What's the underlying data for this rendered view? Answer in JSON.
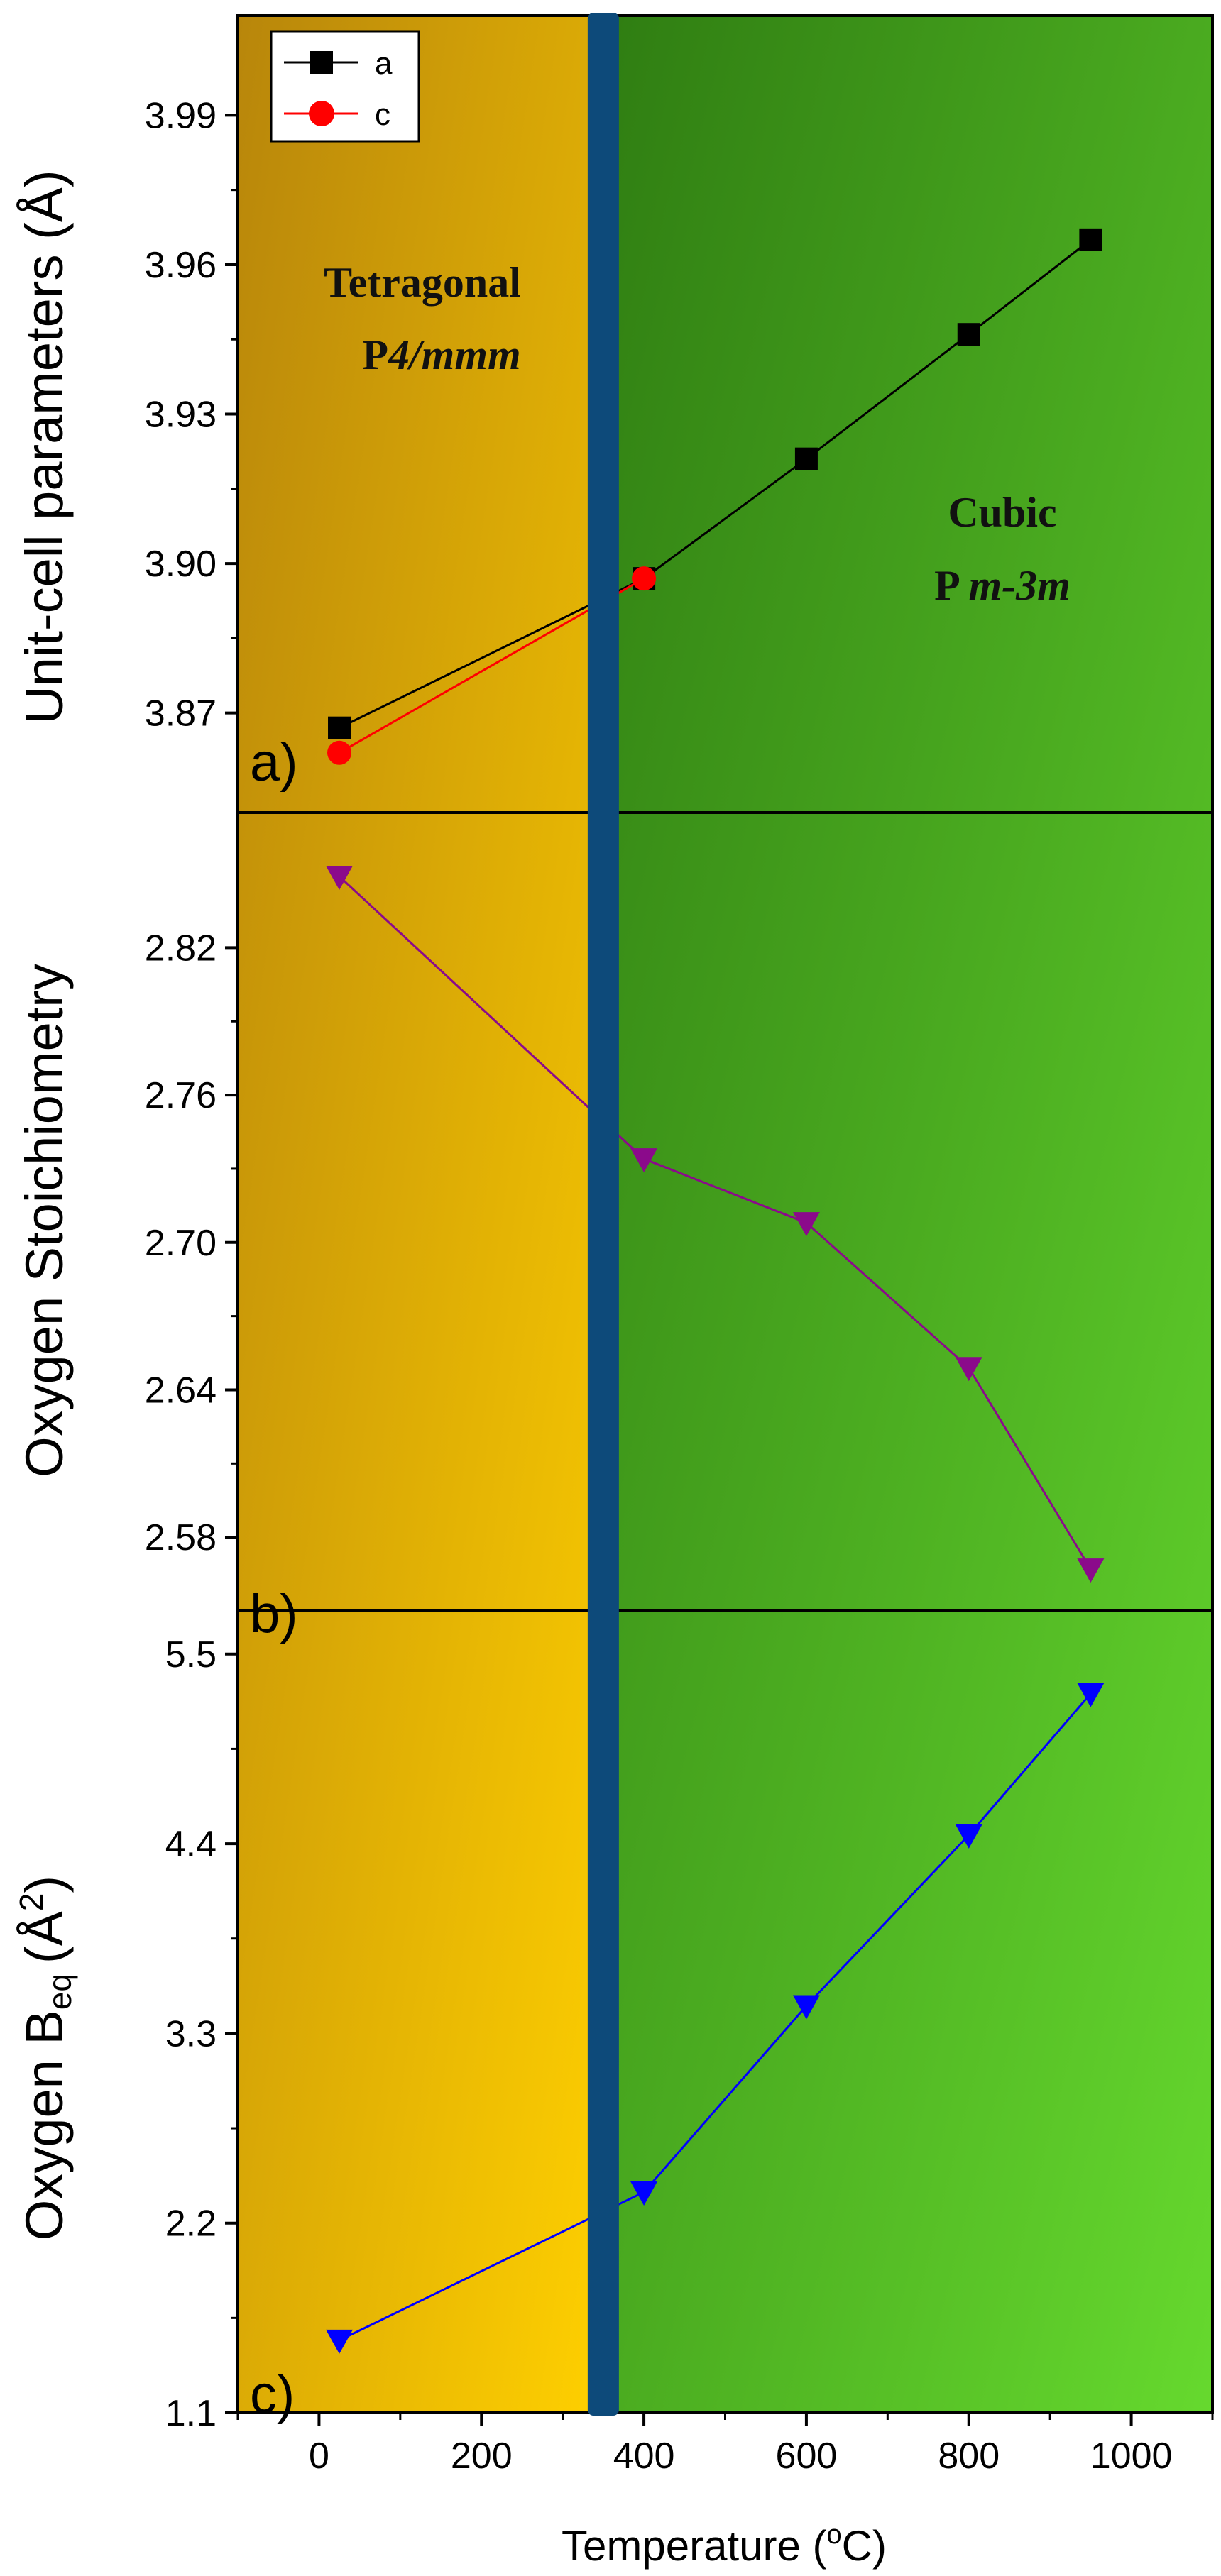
{
  "colors": {
    "tetragonal_dark": "#b8860b",
    "tetragonal_light": "#ffd000",
    "cubic_dark": "#2f7d12",
    "cubic_light": "#66d92e",
    "boundary": "#0d4a7a",
    "series_a": "#000000",
    "series_c": "#ff0000",
    "series_ox": "#8b0a8b",
    "series_beq": "#0000ff"
  },
  "chart_data": [
    {
      "panel_label": "a)",
      "type": "line",
      "ylabel": "Unit-cell parameters (Å)",
      "ylim": [
        3.85,
        4.01
      ],
      "yticks": [
        "3.87",
        "3.90",
        "3.93",
        "3.96",
        "3.99"
      ],
      "legend": {
        "position": "top-left",
        "entries": [
          "a",
          "c"
        ]
      },
      "series": [
        {
          "name": "a",
          "marker": "square",
          "x": [
            25,
            400,
            600,
            800,
            950
          ],
          "y": [
            3.867,
            3.897,
            3.921,
            3.946,
            3.965
          ]
        },
        {
          "name": "c",
          "marker": "circle",
          "x": [
            25,
            400
          ],
          "y": [
            3.862,
            3.897
          ]
        }
      ],
      "annotations": [
        {
          "text": "Tetragonal",
          "italic": false
        },
        {
          "prefix": "P",
          "italic_part": "4/mmm"
        },
        {
          "text": "Cubic",
          "italic": false
        },
        {
          "prefix": "P ",
          "italic_part": "m-3m"
        }
      ]
    },
    {
      "panel_label": "b)",
      "type": "line",
      "ylabel": "Oxygen Stoichiometry",
      "ylim": [
        2.55,
        2.875
      ],
      "yticks": [
        "2.58",
        "2.64",
        "2.70",
        "2.76",
        "2.82"
      ],
      "series": [
        {
          "name": "Oxygen stoichiometry",
          "marker": "triangle-down",
          "x": [
            25,
            400,
            600,
            800,
            950
          ],
          "y": [
            2.849,
            2.734,
            2.708,
            2.649,
            2.567
          ]
        }
      ]
    },
    {
      "panel_label": "c)",
      "type": "line",
      "ylabel": "Oxygen B",
      "ylabel_sub": "eq",
      "ylabel_unit": "(Å",
      "ylabel_sup": "2",
      "ylabel_close": ")",
      "ylim": [
        1.1,
        5.75
      ],
      "yticks": [
        "1.1",
        "2.2",
        "3.3",
        "4.4",
        "5.5"
      ],
      "xlabel": "Temperature (",
      "xlabel_sup": "o",
      "xlabel_unit": "C)",
      "xlim": [
        -100,
        1100
      ],
      "xticks": [
        "0",
        "200",
        "400",
        "600",
        "800",
        "1000"
      ],
      "series": [
        {
          "name": "Oxygen Beq",
          "marker": "triangle-down",
          "x": [
            25,
            400,
            600,
            800,
            950
          ],
          "y": [
            1.52,
            2.38,
            3.46,
            4.45,
            5.27
          ]
        }
      ]
    }
  ],
  "phase_boundary_x": 350
}
